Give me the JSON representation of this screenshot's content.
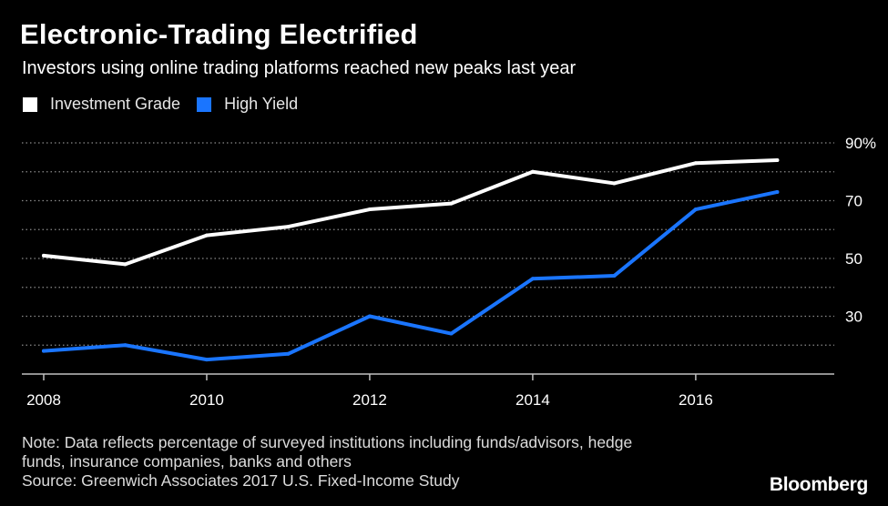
{
  "chart_data": {
    "type": "line",
    "title": "Electronic-Trading Electrified",
    "subtitle": "Investors using online trading platforms reached new peaks last year",
    "x": [
      2008,
      2009,
      2010,
      2011,
      2012,
      2013,
      2014,
      2015,
      2016,
      2017
    ],
    "x_ticks": [
      "2008",
      "2010",
      "2012",
      "2014",
      "2016"
    ],
    "y_ticks": [
      "90%",
      "70",
      "50",
      "30"
    ],
    "ylim": [
      10,
      90
    ],
    "grid": true,
    "legend_position": "top-left",
    "series": [
      {
        "name": "Investment Grade",
        "color": "#ffffff",
        "values": [
          51,
          48,
          58,
          61,
          67,
          69,
          80,
          76,
          83,
          84
        ]
      },
      {
        "name": "High Yield",
        "color": "#1a75ff",
        "values": [
          18,
          20,
          15,
          17,
          30,
          24,
          43,
          44,
          67,
          73
        ]
      }
    ]
  },
  "note": {
    "line1": "Note: Data reflects percentage of surveyed institutions including funds/advisors, hedge",
    "line2": "funds, insurance companies, banks and others",
    "source": "Source: Greenwich Associates 2017 U.S. Fixed-Income Study"
  },
  "brand": "Bloomberg"
}
